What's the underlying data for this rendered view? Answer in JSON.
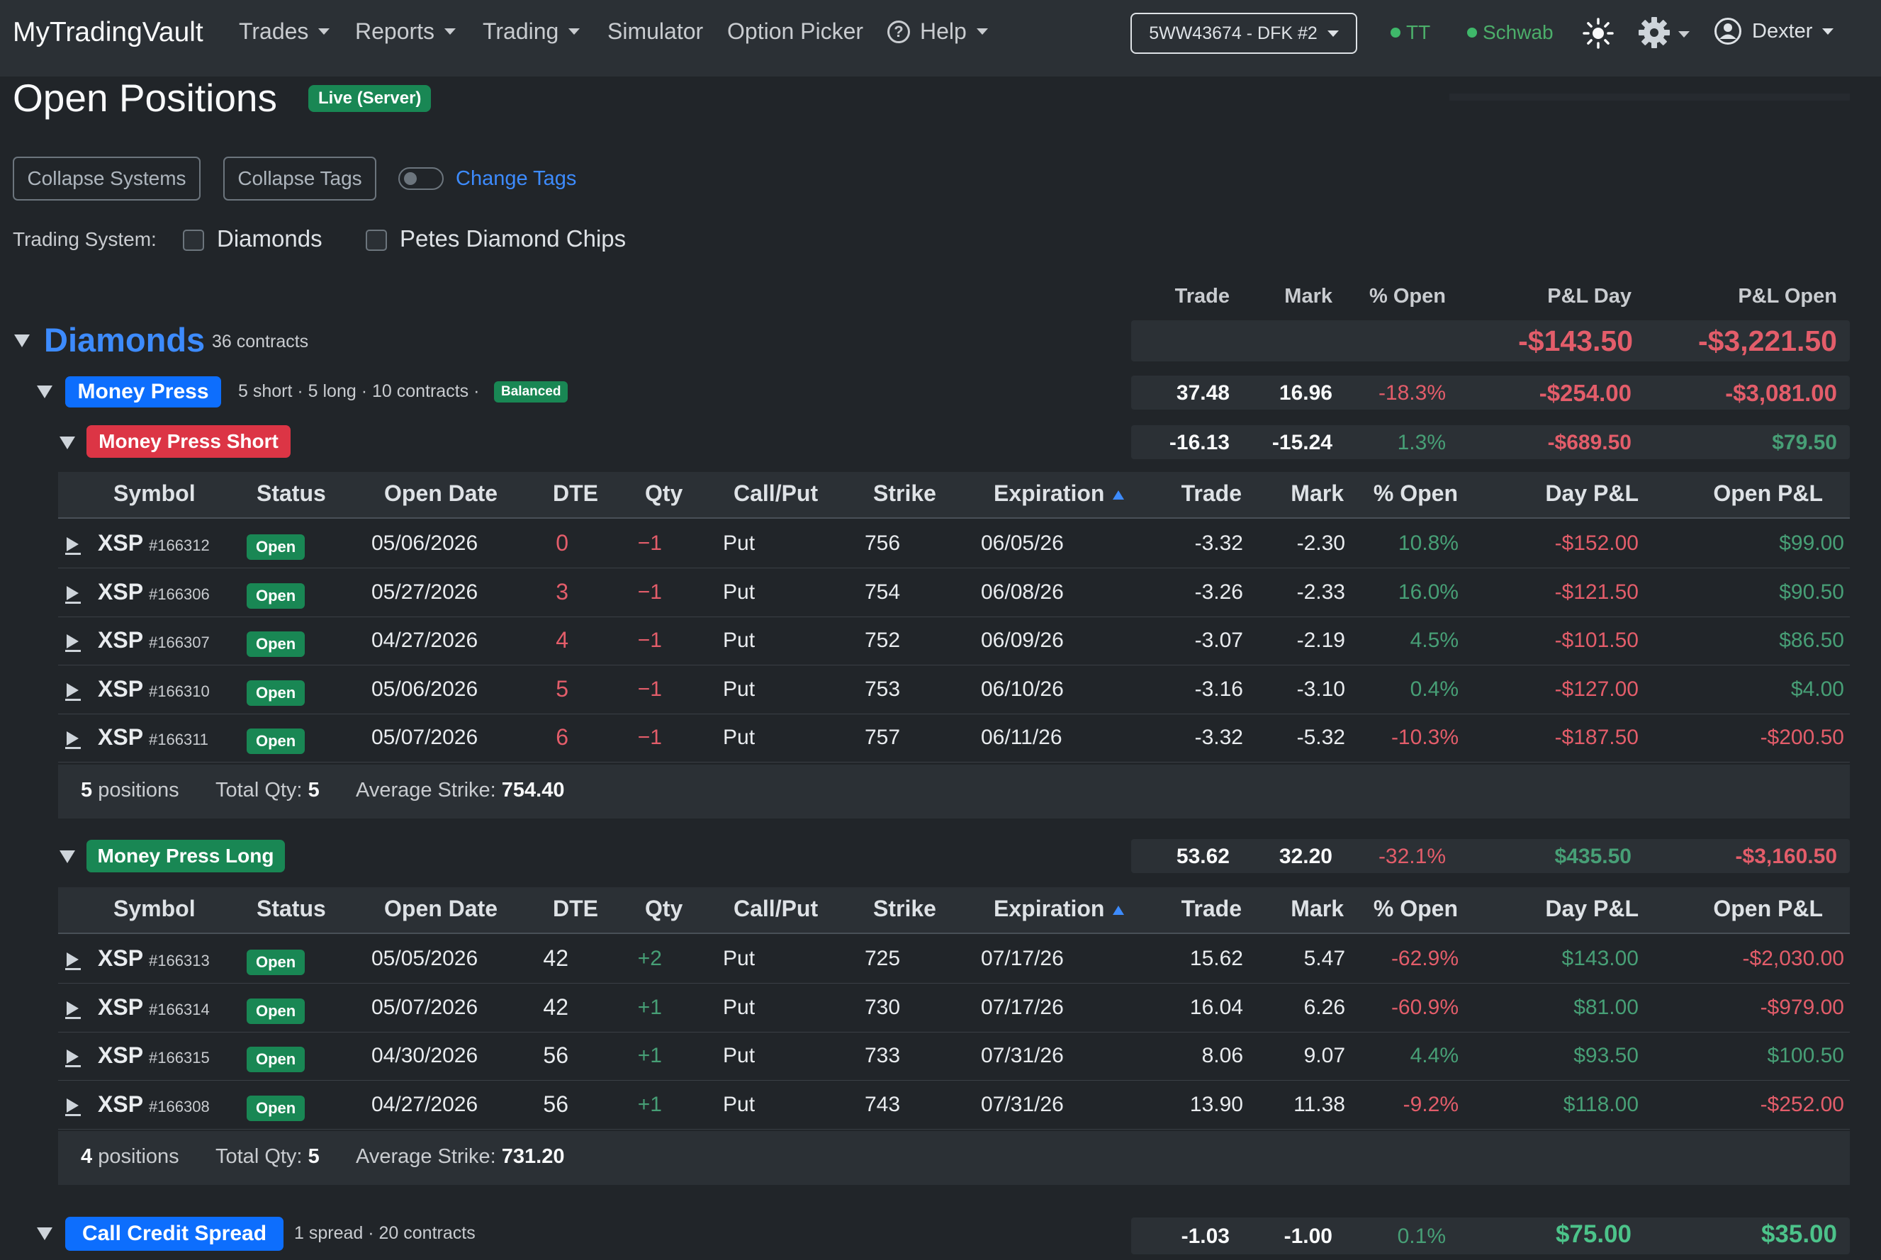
{
  "nav": {
    "brand": "MyTradingVault",
    "menu": [
      {
        "label": "Trades",
        "dropdown": true
      },
      {
        "label": "Reports",
        "dropdown": true
      },
      {
        "label": "Trading",
        "dropdown": true
      },
      {
        "label": "Simulator",
        "dropdown": false
      },
      {
        "label": "Option Picker",
        "dropdown": false
      },
      {
        "label": "Help",
        "dropdown": true
      }
    ],
    "account": "5WW43674 - DFK #2",
    "connections": [
      {
        "label": "TT",
        "status_color": "#3fb86a"
      },
      {
        "label": "Schwab",
        "status_color": "#3fb86a"
      }
    ],
    "user": "Dexter"
  },
  "page": {
    "title": "Open Positions",
    "badge": "Live (Server)",
    "collapse_systems": "Collapse Systems",
    "collapse_tags": "Collapse Tags",
    "change_tags": "Change Tags",
    "trading_system_label": "Trading System:",
    "trading_systems": [
      "Diamonds",
      "Petes Diamond Chips"
    ]
  },
  "summary_headers": [
    "Trade",
    "Mark",
    "% Open",
    "P&L Day",
    "P&L Open"
  ],
  "system": {
    "name": "Diamonds",
    "contracts": "36 contracts",
    "pl_day": "-$143.50",
    "pl_open": "-$3,221.50"
  },
  "group_money_press": {
    "name": "Money Press",
    "sub": "5 short · 5 long · 10 contracts ·",
    "tag": "Balanced",
    "trade": "37.48",
    "mark": "16.96",
    "pct_open": "-18.3%",
    "pl_day": "-$254.00",
    "pl_open": "-$3,081.00"
  },
  "subgroup_short": {
    "name": "Money Press Short",
    "trade": "-16.13",
    "mark": "-15.24",
    "pct_open": "1.3%",
    "pl_day": "-$689.50",
    "pl_open": "$79.50"
  },
  "table_headers": [
    "Symbol",
    "Status",
    "Open Date",
    "DTE",
    "Qty",
    "Call/Put",
    "Strike",
    "Expiration",
    "Trade",
    "Mark",
    "% Open",
    "Day P&L",
    "Open P&L"
  ],
  "short_rows": [
    {
      "symbol": "XSP",
      "id": "#166312",
      "status": "Open",
      "open_date": "05/06/2026",
      "dte": "0",
      "qty": "−1",
      "cp": "Put",
      "strike": "756",
      "exp": "06/05/26",
      "trade": "-3.32",
      "mark": "-2.30",
      "pct": "10.8%",
      "day": "-$152.00",
      "open": "$99.00"
    },
    {
      "symbol": "XSP",
      "id": "#166306",
      "status": "Open",
      "open_date": "05/27/2026",
      "dte": "3",
      "qty": "−1",
      "cp": "Put",
      "strike": "754",
      "exp": "06/08/26",
      "trade": "-3.26",
      "mark": "-2.33",
      "pct": "16.0%",
      "day": "-$121.50",
      "open": "$90.50"
    },
    {
      "symbol": "XSP",
      "id": "#166307",
      "status": "Open",
      "open_date": "04/27/2026",
      "dte": "4",
      "qty": "−1",
      "cp": "Put",
      "strike": "752",
      "exp": "06/09/26",
      "trade": "-3.07",
      "mark": "-2.19",
      "pct": "4.5%",
      "day": "-$101.50",
      "open": "$86.50"
    },
    {
      "symbol": "XSP",
      "id": "#166310",
      "status": "Open",
      "open_date": "05/06/2026",
      "dte": "5",
      "qty": "−1",
      "cp": "Put",
      "strike": "753",
      "exp": "06/10/26",
      "trade": "-3.16",
      "mark": "-3.10",
      "pct": "0.4%",
      "day": "-$127.00",
      "open": "$4.00"
    },
    {
      "symbol": "XSP",
      "id": "#166311",
      "status": "Open",
      "open_date": "05/07/2026",
      "dte": "6",
      "qty": "−1",
      "cp": "Put",
      "strike": "757",
      "exp": "06/11/26",
      "trade": "-3.32",
      "mark": "-5.32",
      "pct": "-10.3%",
      "day": "-$187.50",
      "open": "-$200.50"
    }
  ],
  "short_footer": {
    "positions_num": "5",
    "positions_label": "positions",
    "qty_label": "Total Qty:",
    "qty": "5",
    "avg_label": "Average Strike:",
    "avg": "754.40"
  },
  "subgroup_long": {
    "name": "Money Press Long",
    "trade": "53.62",
    "mark": "32.20",
    "pct_open": "-32.1%",
    "pl_day": "$435.50",
    "pl_open": "-$3,160.50"
  },
  "long_rows": [
    {
      "symbol": "XSP",
      "id": "#166313",
      "status": "Open",
      "open_date": "05/05/2026",
      "dte": "42",
      "qty": "+2",
      "cp": "Put",
      "strike": "725",
      "exp": "07/17/26",
      "trade": "15.62",
      "mark": "5.47",
      "pct": "-62.9%",
      "day": "$143.00",
      "open": "-$2,030.00"
    },
    {
      "symbol": "XSP",
      "id": "#166314",
      "status": "Open",
      "open_date": "05/07/2026",
      "dte": "42",
      "qty": "+1",
      "cp": "Put",
      "strike": "730",
      "exp": "07/17/26",
      "trade": "16.04",
      "mark": "6.26",
      "pct": "-60.9%",
      "day": "$81.00",
      "open": "-$979.00"
    },
    {
      "symbol": "XSP",
      "id": "#166315",
      "status": "Open",
      "open_date": "04/30/2026",
      "dte": "56",
      "qty": "+1",
      "cp": "Put",
      "strike": "733",
      "exp": "07/31/26",
      "trade": "8.06",
      "mark": "9.07",
      "pct": "4.4%",
      "day": "$93.50",
      "open": "$100.50"
    },
    {
      "symbol": "XSP",
      "id": "#166308",
      "status": "Open",
      "open_date": "04/27/2026",
      "dte": "56",
      "qty": "+1",
      "cp": "Put",
      "strike": "743",
      "exp": "07/31/26",
      "trade": "13.90",
      "mark": "11.38",
      "pct": "-9.2%",
      "day": "$118.00",
      "open": "-$252.00"
    }
  ],
  "long_footer": {
    "positions_num": "4",
    "positions_label": "positions",
    "qty_label": "Total Qty:",
    "qty": "5",
    "avg_label": "Average Strike:",
    "avg": "731.20"
  },
  "group_ccs": {
    "name": "Call Credit Spread",
    "sub": "1 spread · 20 contracts",
    "trade": "-1.03",
    "mark": "-1.00",
    "pct_open": "0.1%",
    "pl_day": "$75.00",
    "pl_open": "$35.00"
  },
  "colors": {
    "positive": "#479f76",
    "negative": "#e35d6a",
    "accent": "#3d8bfd"
  }
}
